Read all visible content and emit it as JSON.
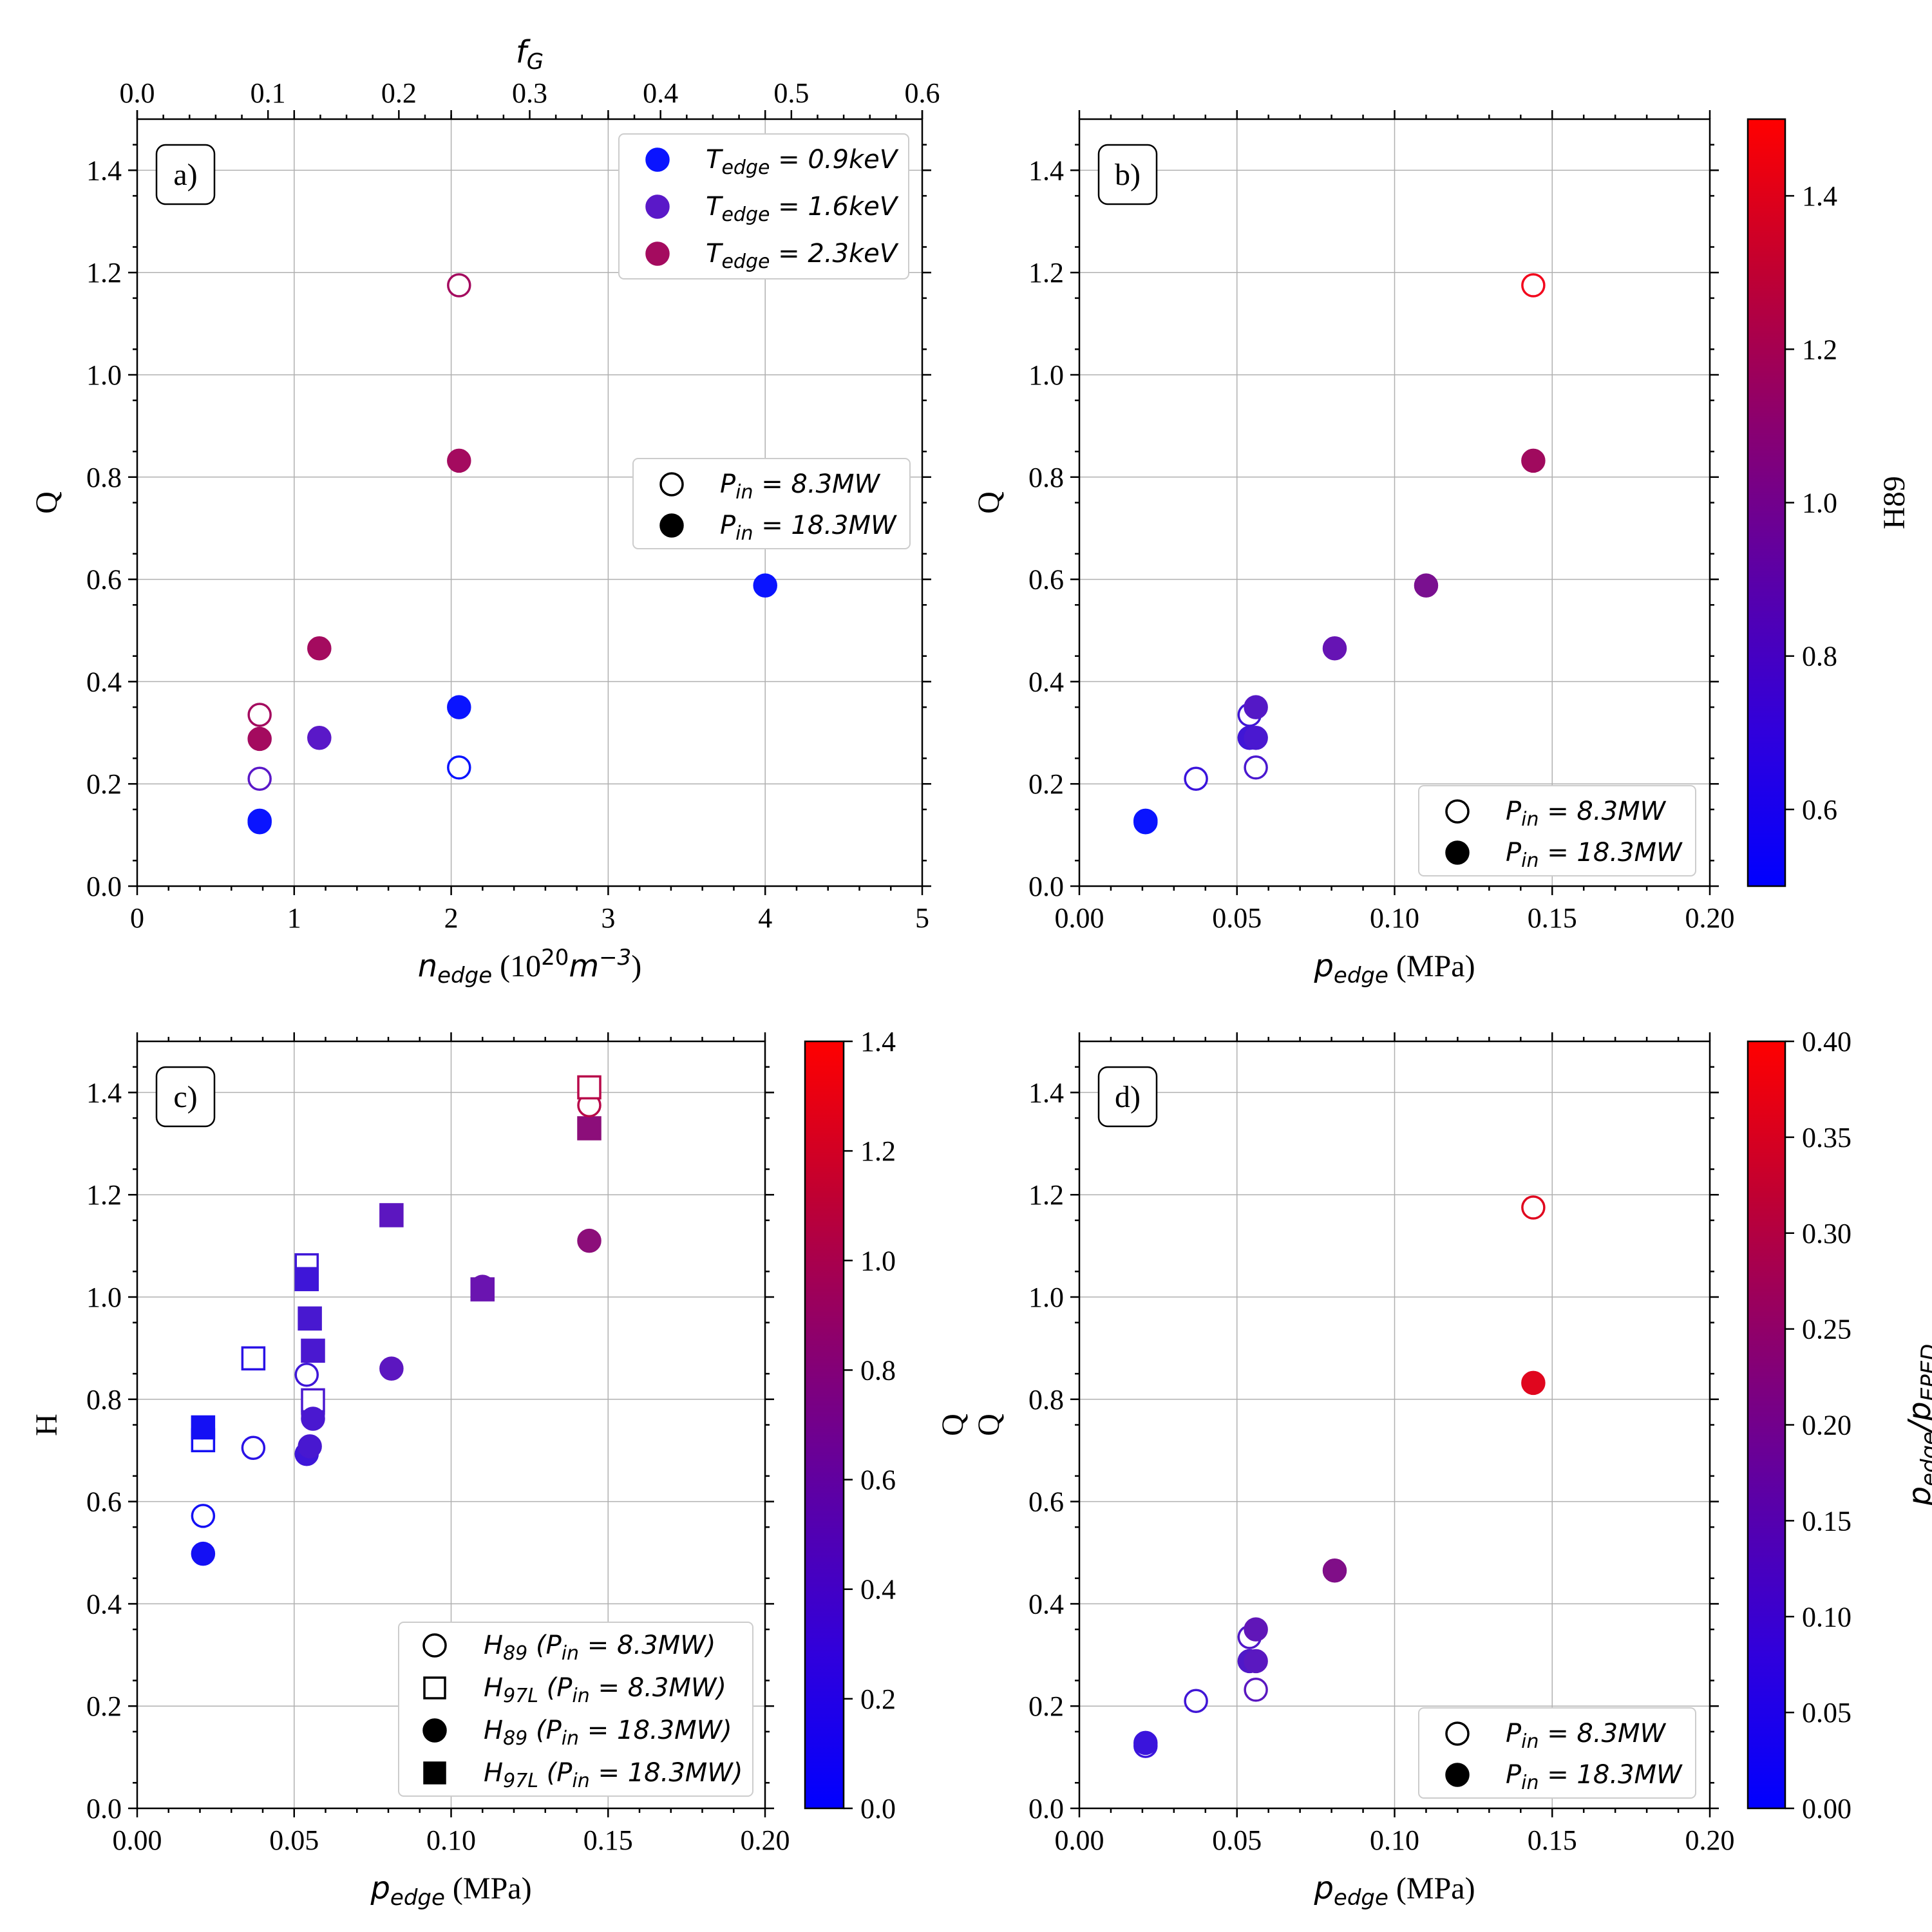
{
  "chart_data": [
    {
      "panel": "a)",
      "type": "scatter",
      "xlabel": "n_edge (10^20 m^-3)",
      "xlabel_parts": {
        "sym": "n",
        "sub": "edge",
        "unit": " (10",
        "sup": "20",
        "unit2": "m",
        "sup2": "−3",
        "close": ")"
      },
      "ylabel": "Q",
      "xlim": [
        0,
        5
      ],
      "ylim": [
        0,
        1.5
      ],
      "xticks": [
        0,
        1,
        2,
        3,
        4,
        5
      ],
      "xtick_labels": [
        "0",
        "1",
        "2",
        "3",
        "4",
        "5"
      ],
      "yticks": [
        0.0,
        0.2,
        0.4,
        0.6,
        0.8,
        1.0,
        1.2,
        1.4
      ],
      "ytick_labels": [
        "0.0",
        "0.2",
        "0.4",
        "0.6",
        "0.8",
        "1.0",
        "1.2",
        "1.4"
      ],
      "top_axis": {
        "label": "f_G",
        "lim": [
          0,
          0.6
        ],
        "ticks": [
          0.0,
          0.1,
          0.2,
          0.3,
          0.4,
          0.5,
          0.6
        ],
        "tick_labels": [
          "0.0",
          "0.1",
          "0.2",
          "0.3",
          "0.4",
          "0.5",
          "0.6"
        ]
      },
      "points": [
        {
          "x": 0.78,
          "y": 0.125,
          "color": "#0a14ff",
          "filled": true
        },
        {
          "x": 0.78,
          "y": 0.128,
          "color": "#0a14ff",
          "filled": true
        },
        {
          "x": 0.78,
          "y": 0.21,
          "color": "#5a18c8",
          "filled": false
        },
        {
          "x": 0.78,
          "y": 0.288,
          "color": "#a40b5f",
          "filled": true
        },
        {
          "x": 0.78,
          "y": 0.335,
          "color": "#a40b5f",
          "filled": false
        },
        {
          "x": 1.16,
          "y": 0.29,
          "color": "#5a18c8",
          "filled": true
        },
        {
          "x": 1.16,
          "y": 0.465,
          "color": "#a40b5f",
          "filled": true
        },
        {
          "x": 2.05,
          "y": 0.232,
          "color": "#0a14ff",
          "filled": false
        },
        {
          "x": 2.05,
          "y": 0.35,
          "color": "#0a14ff",
          "filled": true
        },
        {
          "x": 2.05,
          "y": 0.832,
          "color": "#a40b5f",
          "filled": true
        },
        {
          "x": 2.05,
          "y": 1.175,
          "color": "#a40b5f",
          "filled": false
        },
        {
          "x": 4.0,
          "y": 0.588,
          "color": "#0a14ff",
          "filled": true
        }
      ],
      "legend_T": [
        {
          "label": "T_edge = 0.9keV",
          "sym": "T",
          "sub": "edge",
          "val": " = 0.9keV",
          "color": "#0a14ff"
        },
        {
          "label": "T_edge = 1.6keV",
          "sym": "T",
          "sub": "edge",
          "val": " = 1.6keV",
          "color": "#5a18c8"
        },
        {
          "label": "T_edge = 2.3keV",
          "sym": "T",
          "sub": "edge",
          "val": " = 2.3keV",
          "color": "#a40b5f"
        }
      ],
      "legend_P": [
        {
          "sym": "P",
          "sub": "in",
          "val": " = 8.3MW",
          "filled": false
        },
        {
          "sym": "P",
          "sub": "in",
          "val": " = 18.3MW",
          "filled": true
        }
      ]
    },
    {
      "panel": "b)",
      "type": "scatter",
      "xlabel": "p_edge (MPa)",
      "ylabel": "Q",
      "xlim": [
        0,
        0.2
      ],
      "ylim": [
        0,
        1.5
      ],
      "xticks": [
        0.0,
        0.05,
        0.1,
        0.15,
        0.2
      ],
      "xtick_labels": [
        "0.00",
        "0.05",
        "0.10",
        "0.15",
        "0.20"
      ],
      "yticks": [
        0.0,
        0.2,
        0.4,
        0.6,
        0.8,
        1.0,
        1.2,
        1.4
      ],
      "ytick_labels": [
        "0.0",
        "0.2",
        "0.4",
        "0.6",
        "0.8",
        "1.0",
        "1.2",
        "1.4"
      ],
      "colorbar": {
        "label": "H89",
        "lim": [
          0.5,
          1.5
        ],
        "ticks": [
          0.6,
          0.8,
          1.0,
          1.2,
          1.4
        ],
        "tick_labels": [
          "0.6",
          "0.8",
          "1.0",
          "1.2",
          "1.4"
        ]
      },
      "points": [
        {
          "x": 0.021,
          "y": 0.125,
          "color": "#0a14ff",
          "filled": true
        },
        {
          "x": 0.021,
          "y": 0.128,
          "color": "#0a14ff",
          "filled": true
        },
        {
          "x": 0.037,
          "y": 0.21,
          "color": "#3a14dc",
          "filled": false
        },
        {
          "x": 0.054,
          "y": 0.335,
          "color": "#4016d6",
          "filled": false
        },
        {
          "x": 0.054,
          "y": 0.29,
          "color": "#4016d6",
          "filled": true
        },
        {
          "x": 0.056,
          "y": 0.29,
          "color": "#4a18d0",
          "filled": true
        },
        {
          "x": 0.056,
          "y": 0.232,
          "color": "#4a18d0",
          "filled": false
        },
        {
          "x": 0.056,
          "y": 0.35,
          "color": "#5418c6",
          "filled": true
        },
        {
          "x": 0.081,
          "y": 0.465,
          "color": "#6614b4",
          "filled": true
        },
        {
          "x": 0.11,
          "y": 0.588,
          "color": "#7a1090",
          "filled": true
        },
        {
          "x": 0.144,
          "y": 0.832,
          "color": "#a00a5e",
          "filled": true
        },
        {
          "x": 0.144,
          "y": 1.175,
          "color": "#f2061c",
          "filled": false
        }
      ],
      "legend_P": [
        {
          "sym": "P",
          "sub": "in",
          "val": " = 8.3MW",
          "filled": false
        },
        {
          "sym": "P",
          "sub": "in",
          "val": " = 18.3MW",
          "filled": true
        }
      ]
    },
    {
      "panel": "c)",
      "type": "scatter",
      "xlabel": "p_edge (MPa)",
      "ylabel": "H",
      "xlim": [
        0,
        0.2
      ],
      "ylim": [
        0,
        1.5
      ],
      "xticks": [
        0.0,
        0.05,
        0.1,
        0.15,
        0.2
      ],
      "xtick_labels": [
        "0.00",
        "0.05",
        "0.10",
        "0.15",
        "0.20"
      ],
      "yticks": [
        0.0,
        0.2,
        0.4,
        0.6,
        0.8,
        1.0,
        1.2,
        1.4
      ],
      "ytick_labels": [
        "0.0",
        "0.2",
        "0.4",
        "0.6",
        "0.8",
        "1.0",
        "1.2",
        "1.4"
      ],
      "colorbar": {
        "label": "Q",
        "lim": [
          0,
          1.4
        ],
        "ticks": [
          0.0,
          0.2,
          0.4,
          0.6,
          0.8,
          1.0,
          1.2,
          1.4
        ],
        "tick_labels": [
          "0.0",
          "0.2",
          "0.4",
          "0.6",
          "0.8",
          "1.0",
          "1.2",
          "1.4"
        ]
      },
      "points": [
        {
          "x": 0.021,
          "y": 0.572,
          "color": "#1410f4",
          "filled": false,
          "marker": "circle"
        },
        {
          "x": 0.021,
          "y": 0.498,
          "color": "#1410f4",
          "filled": true,
          "marker": "circle"
        },
        {
          "x": 0.021,
          "y": 0.72,
          "color": "#1410f4",
          "filled": false,
          "marker": "square"
        },
        {
          "x": 0.021,
          "y": 0.745,
          "color": "#1410f4",
          "filled": true,
          "marker": "square"
        },
        {
          "x": 0.037,
          "y": 0.705,
          "color": "#2a12e6",
          "filled": false,
          "marker": "circle"
        },
        {
          "x": 0.037,
          "y": 0.88,
          "color": "#2a12e6",
          "filled": false,
          "marker": "square"
        },
        {
          "x": 0.054,
          "y": 0.848,
          "color": "#3e16d8",
          "filled": false,
          "marker": "circle"
        },
        {
          "x": 0.054,
          "y": 0.693,
          "color": "#3e16d8",
          "filled": true,
          "marker": "circle"
        },
        {
          "x": 0.054,
          "y": 1.062,
          "color": "#3e16d8",
          "filled": false,
          "marker": "square"
        },
        {
          "x": 0.054,
          "y": 1.035,
          "color": "#3e16d8",
          "filled": true,
          "marker": "square"
        },
        {
          "x": 0.055,
          "y": 0.708,
          "color": "#4818d0",
          "filled": true,
          "marker": "circle"
        },
        {
          "x": 0.055,
          "y": 0.958,
          "color": "#4818d0",
          "filled": true,
          "marker": "square"
        },
        {
          "x": 0.056,
          "y": 0.772,
          "color": "#4a18d0",
          "filled": false,
          "marker": "circle"
        },
        {
          "x": 0.056,
          "y": 0.798,
          "color": "#4a18d0",
          "filled": false,
          "marker": "square"
        },
        {
          "x": 0.056,
          "y": 0.762,
          "color": "#4a18d0",
          "filled": true,
          "marker": "circle"
        },
        {
          "x": 0.056,
          "y": 0.895,
          "color": "#4a18d0",
          "filled": true,
          "marker": "square"
        },
        {
          "x": 0.081,
          "y": 0.86,
          "color": "#5c16c0",
          "filled": true,
          "marker": "circle"
        },
        {
          "x": 0.081,
          "y": 1.16,
          "color": "#5c16c0",
          "filled": true,
          "marker": "square"
        },
        {
          "x": 0.11,
          "y": 1.02,
          "color": "#6a14b0",
          "filled": true,
          "marker": "circle"
        },
        {
          "x": 0.11,
          "y": 1.015,
          "color": "#6a14b0",
          "filled": true,
          "marker": "square"
        },
        {
          "x": 0.144,
          "y": 1.11,
          "color": "#8c0e7a",
          "filled": true,
          "marker": "circle"
        },
        {
          "x": 0.144,
          "y": 1.33,
          "color": "#8c0e7a",
          "filled": true,
          "marker": "square"
        },
        {
          "x": 0.144,
          "y": 1.375,
          "color": "#b8084a",
          "filled": false,
          "marker": "circle"
        },
        {
          "x": 0.144,
          "y": 1.41,
          "color": "#b8084a",
          "filled": false,
          "marker": "square"
        }
      ],
      "legend_H": [
        {
          "sym": "H",
          "sub": "89",
          "val": "(P",
          "vsub": "in",
          "val2": " = 8.3MW)",
          "marker": "circle",
          "filled": false
        },
        {
          "sym": "H",
          "sub": "97L",
          "val": "(P",
          "vsub": "in",
          "val2": " = 8.3MW)",
          "marker": "square",
          "filled": false
        },
        {
          "sym": "H",
          "sub": "89",
          "val": "(P",
          "vsub": "in",
          "val2": " = 18.3MW)",
          "marker": "circle",
          "filled": true
        },
        {
          "sym": "H",
          "sub": "97L",
          "val": "(P",
          "vsub": "in",
          "val2": " = 18.3MW)",
          "marker": "square",
          "filled": true
        }
      ]
    },
    {
      "panel": "d)",
      "type": "scatter",
      "xlabel": "p_edge (MPa)",
      "ylabel": "Q",
      "xlim": [
        0,
        0.2
      ],
      "ylim": [
        0,
        1.5
      ],
      "xticks": [
        0.0,
        0.05,
        0.1,
        0.15,
        0.2
      ],
      "xtick_labels": [
        "0.00",
        "0.05",
        "0.10",
        "0.15",
        "0.20"
      ],
      "yticks": [
        0.0,
        0.2,
        0.4,
        0.6,
        0.8,
        1.0,
        1.2,
        1.4
      ],
      "ytick_labels": [
        "0.0",
        "0.2",
        "0.4",
        "0.6",
        "0.8",
        "1.0",
        "1.2",
        "1.4"
      ],
      "colorbar": {
        "label": "p_edge/p_EPED",
        "lim": [
          0,
          0.4
        ],
        "ticks": [
          0.0,
          0.05,
          0.1,
          0.15,
          0.2,
          0.25,
          0.3,
          0.35,
          0.4
        ],
        "tick_labels": [
          "0.00",
          "0.05",
          "0.10",
          "0.15",
          "0.20",
          "0.25",
          "0.30",
          "0.35",
          "0.40"
        ]
      },
      "points": [
        {
          "x": 0.021,
          "y": 0.122,
          "color": "#3a14dc",
          "filled": false
        },
        {
          "x": 0.021,
          "y": 0.128,
          "color": "#3a14dc",
          "filled": true
        },
        {
          "x": 0.037,
          "y": 0.21,
          "color": "#4016d6",
          "filled": false
        },
        {
          "x": 0.054,
          "y": 0.335,
          "color": "#5018c8",
          "filled": false
        },
        {
          "x": 0.054,
          "y": 0.288,
          "color": "#5018c8",
          "filled": true
        },
        {
          "x": 0.056,
          "y": 0.288,
          "color": "#5a18c0",
          "filled": true
        },
        {
          "x": 0.056,
          "y": 0.232,
          "color": "#5a18c0",
          "filled": false
        },
        {
          "x": 0.056,
          "y": 0.35,
          "color": "#6016b8",
          "filled": true
        },
        {
          "x": 0.081,
          "y": 0.465,
          "color": "#800e88",
          "filled": true
        },
        {
          "x": 0.144,
          "y": 0.832,
          "color": "#e0061e",
          "filled": true
        },
        {
          "x": 0.144,
          "y": 1.175,
          "color": "#e0061e",
          "filled": false
        }
      ],
      "legend_P": [
        {
          "sym": "P",
          "sub": "in",
          "val": " = 8.3MW",
          "filled": false
        },
        {
          "sym": "P",
          "sub": "in",
          "val": " = 18.3MW",
          "filled": true
        }
      ]
    }
  ]
}
